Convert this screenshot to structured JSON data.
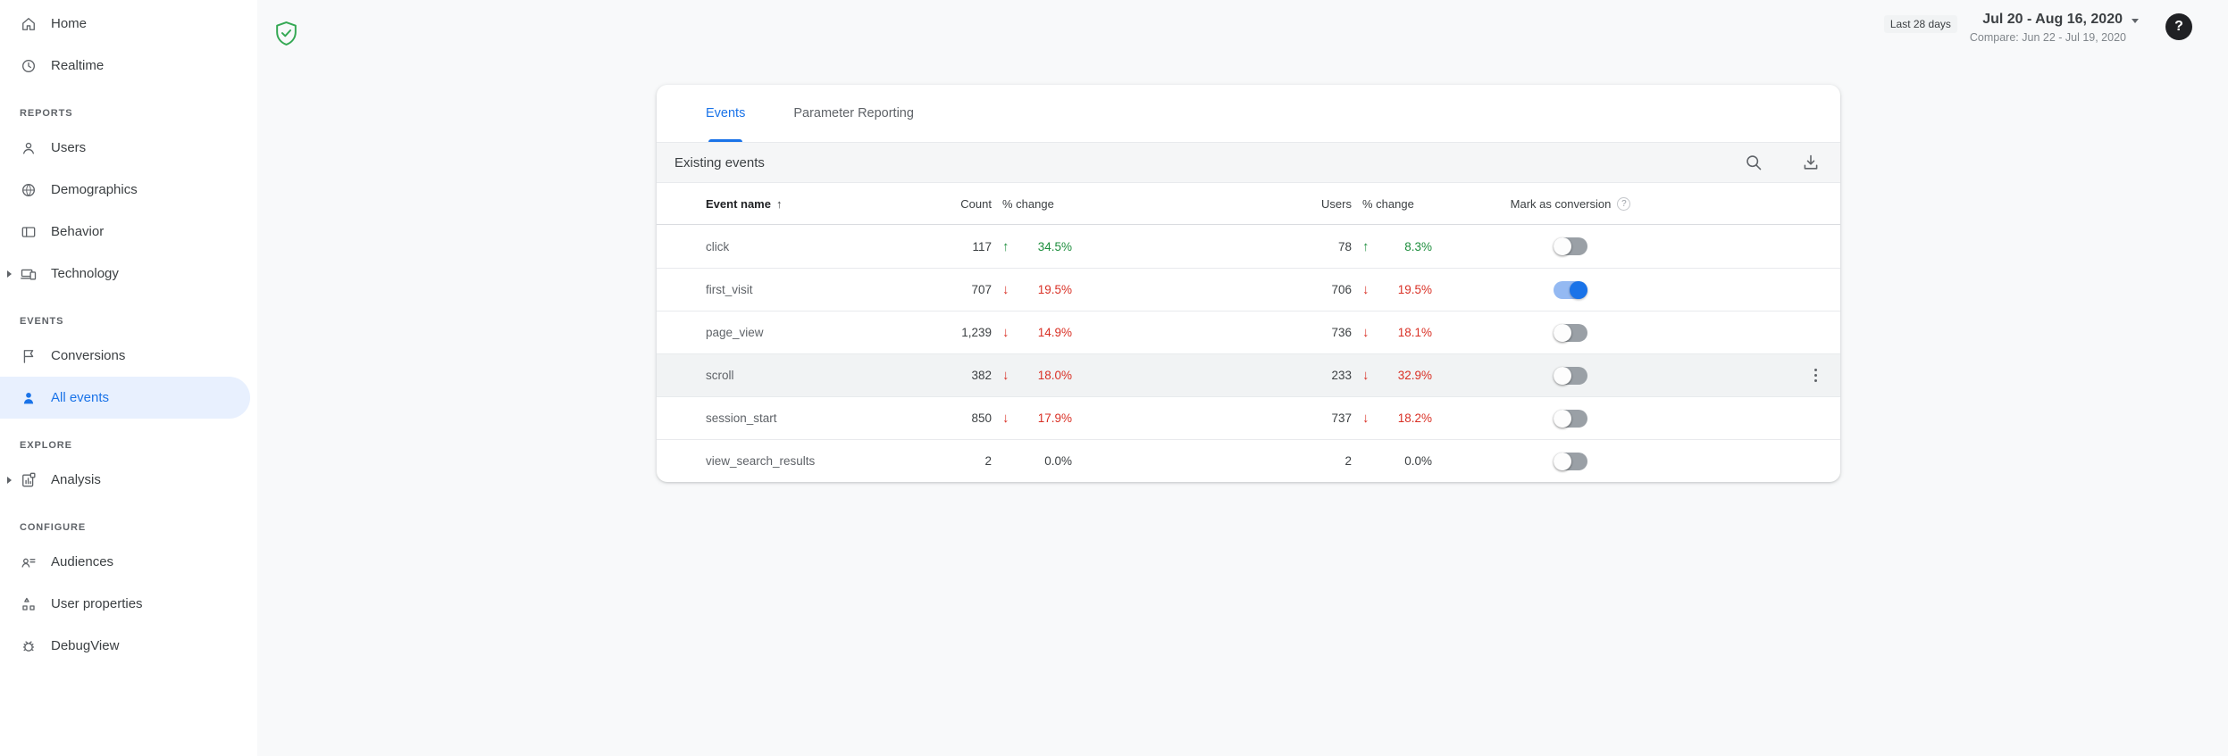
{
  "colors": {
    "blue": "#1a73e8",
    "blue_pill": "#e8f0fe",
    "green": "#1e8e3e",
    "red": "#d93025",
    "toggle_off_track": "#9aa0a6",
    "toggle_on_track": "#94b9f2",
    "shield_green": "#34a853"
  },
  "icons": {
    "up_arrow": "↑",
    "down_arrow": "↓",
    "sort_asc": "↑",
    "shield": "shield-check",
    "help": "?",
    "header_help": "?",
    "search": "magnifier",
    "download": "download-tray",
    "menu": "vertical-dots"
  },
  "sidebar": {
    "sections": [
      {
        "header": null,
        "items": [
          {
            "id": "home",
            "label": "Home",
            "icon": "home",
            "expandable": false,
            "active": false
          },
          {
            "id": "realtime",
            "label": "Realtime",
            "icon": "realtime",
            "expandable": false,
            "active": false
          }
        ]
      },
      {
        "header": "REPORTS",
        "items": [
          {
            "id": "users",
            "label": "Users",
            "icon": "users",
            "expandable": false,
            "active": false
          },
          {
            "id": "demographics",
            "label": "Demographics",
            "icon": "demographics",
            "expandable": false,
            "active": false
          },
          {
            "id": "behavior",
            "label": "Behavior",
            "icon": "behavior",
            "expandable": false,
            "active": false
          },
          {
            "id": "technology",
            "label": "Technology",
            "icon": "technology",
            "expandable": true,
            "active": false
          }
        ]
      },
      {
        "header": "EVENTS",
        "items": [
          {
            "id": "conversions",
            "label": "Conversions",
            "icon": "conversions",
            "expandable": false,
            "active": false
          },
          {
            "id": "all-events",
            "label": "All events",
            "icon": "all-events",
            "expandable": false,
            "active": true
          }
        ]
      },
      {
        "header": "EXPLORE",
        "items": [
          {
            "id": "analysis",
            "label": "Analysis",
            "icon": "analysis",
            "expandable": true,
            "active": false
          }
        ]
      },
      {
        "header": "CONFIGURE",
        "items": [
          {
            "id": "audiences",
            "label": "Audiences",
            "icon": "audiences",
            "expandable": false,
            "active": false
          },
          {
            "id": "user-properties",
            "label": "User properties",
            "icon": "user-properties",
            "expandable": false,
            "active": false
          },
          {
            "id": "debugview",
            "label": "DebugView",
            "icon": "debugview",
            "expandable": false,
            "active": false
          }
        ]
      }
    ]
  },
  "topbar": {
    "range_label": "Last 28 days",
    "date_range": "Jul 20 - Aug 16, 2020",
    "compare": "Compare: Jun 22 - Jul 19, 2020",
    "help_glyph": "?"
  },
  "card": {
    "tabs": [
      {
        "label": "Events",
        "active": true
      },
      {
        "label": "Parameter Reporting",
        "active": false
      }
    ],
    "toolbar": {
      "title": "Existing events"
    },
    "table": {
      "headers": {
        "event_name": "Event name",
        "count": "Count",
        "pct_change_count": "% change",
        "users": "Users",
        "pct_change_users": "% change",
        "mark_as_conversion": "Mark as conversion",
        "help_glyph": "?"
      },
      "rows": [
        {
          "name": "click",
          "count": "117",
          "count_dir": "up",
          "count_change": "34.5%",
          "users": "78",
          "users_dir": "up",
          "users_change": "8.3%",
          "conversion": false,
          "highlighted": false,
          "menu": false
        },
        {
          "name": "first_visit",
          "count": "707",
          "count_dir": "down",
          "count_change": "19.5%",
          "users": "706",
          "users_dir": "down",
          "users_change": "19.5%",
          "conversion": true,
          "highlighted": false,
          "menu": false
        },
        {
          "name": "page_view",
          "count": "1,239",
          "count_dir": "down",
          "count_change": "14.9%",
          "users": "736",
          "users_dir": "down",
          "users_change": "18.1%",
          "conversion": false,
          "highlighted": false,
          "menu": false
        },
        {
          "name": "scroll",
          "count": "382",
          "count_dir": "down",
          "count_change": "18.0%",
          "users": "233",
          "users_dir": "down",
          "users_change": "32.9%",
          "conversion": false,
          "highlighted": true,
          "menu": true
        },
        {
          "name": "session_start",
          "count": "850",
          "count_dir": "down",
          "count_change": "17.9%",
          "users": "737",
          "users_dir": "down",
          "users_change": "18.2%",
          "conversion": false,
          "highlighted": false,
          "menu": false
        },
        {
          "name": "view_search_results",
          "count": "2",
          "count_dir": "flat",
          "count_change": "0.0%",
          "users": "2",
          "users_dir": "flat",
          "users_change": "0.0%",
          "conversion": false,
          "highlighted": false,
          "menu": false
        }
      ]
    }
  }
}
